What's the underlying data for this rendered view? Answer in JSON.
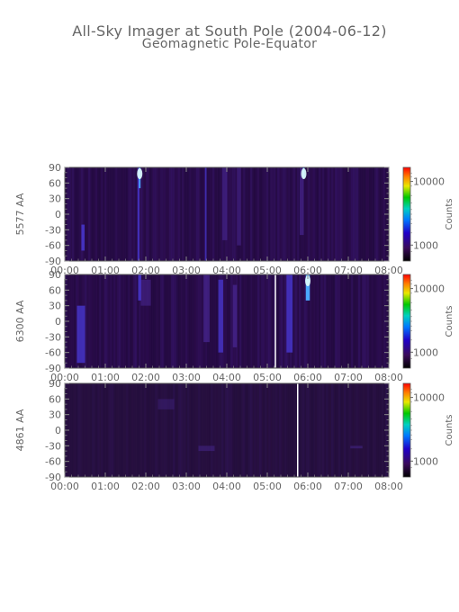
{
  "title": "All-Sky Imager at South Pole (2004-06-12)",
  "subtitle": "Geomagnetic Pole-Equator",
  "chart_data": [
    {
      "type": "heatmap",
      "ylabel": "5577 AA",
      "colorbar_label": "Counts",
      "colorbar_ticks": [
        "10000",
        "1000"
      ],
      "x_ticks": [
        "00:00",
        "01:00",
        "02:00",
        "03:00",
        "04:00",
        "05:00",
        "06:00",
        "07:00",
        "08:00"
      ],
      "xlim": [
        "00:00",
        "08:00"
      ],
      "y_ticks": [
        "90",
        "60",
        "30",
        "0",
        "-30",
        "-60",
        "-90"
      ],
      "ylim": [
        -90,
        90
      ],
      "data_gaps": []
    },
    {
      "type": "heatmap",
      "ylabel": "6300 AA",
      "colorbar_label": "Counts",
      "colorbar_ticks": [
        "10000",
        "1000"
      ],
      "x_ticks": [
        "00:00",
        "01:00",
        "02:00",
        "03:00",
        "04:00",
        "05:00",
        "06:00",
        "07:00",
        "08:00"
      ],
      "xlim": [
        "00:00",
        "08:00"
      ],
      "y_ticks": [
        "90",
        "60",
        "30",
        "0",
        "-30",
        "-60",
        "-90"
      ],
      "ylim": [
        -90,
        90
      ],
      "data_gaps": [
        "05:12"
      ]
    },
    {
      "type": "heatmap",
      "ylabel": "4861 AA",
      "colorbar_label": "Counts",
      "colorbar_ticks": [
        "10000",
        "1000"
      ],
      "x_ticks": [
        "00:00",
        "01:00",
        "02:00",
        "03:00",
        "04:00",
        "05:00",
        "06:00",
        "07:00",
        "08:00"
      ],
      "xlim": [
        "00:00",
        "08:00"
      ],
      "y_ticks": [
        "90",
        "60",
        "30",
        "0",
        "-30",
        "-60",
        "-90"
      ],
      "ylim": [
        -90,
        90
      ],
      "data_gaps": [
        "05:45"
      ]
    }
  ]
}
